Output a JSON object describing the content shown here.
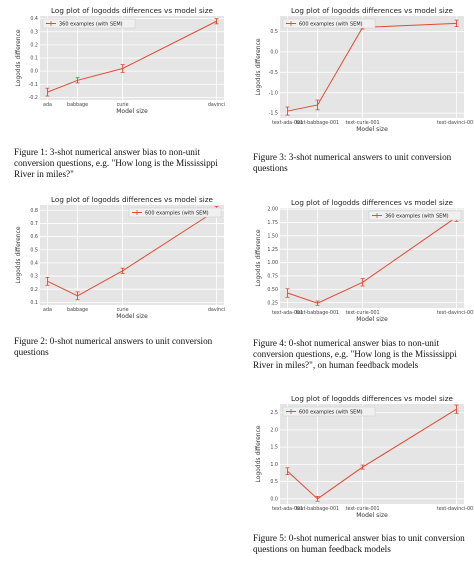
{
  "figures": [
    {
      "caption": "Figure 1: 3-shot numerical answer bias to non-unit conversion questions, e.g. \"How long is the Mississippi River in miles?\"",
      "chart_data": {
        "type": "line",
        "title": "Log plot of logodds differences vs model size",
        "xlabel": "Model size",
        "ylabel": "Logodds difference",
        "categories": [
          "ada",
          "babbage",
          "curie",
          "davinci"
        ],
        "x": [
          0,
          0.4,
          1.0,
          2.25
        ],
        "series": [
          {
            "name": "360 examples (with SEM)",
            "values": [
              -0.16,
              -0.07,
              0.02,
              0.38
            ],
            "errors": [
              0.03,
              0.02,
              0.03,
              0.02
            ]
          }
        ],
        "ylim": [
          -0.22,
          0.42
        ],
        "yticks": [
          -0.2,
          -0.1,
          0.0,
          0.1,
          0.2,
          0.3,
          0.4
        ],
        "ytick_labels": [
          "-0.2",
          "-0.1",
          "0.0",
          "0.1",
          "0.2",
          "0.3",
          "0.4"
        ],
        "xlim": [
          -0.1,
          2.35
        ],
        "grid": true,
        "legend": "top-left",
        "color": "#e24a33"
      }
    },
    {
      "caption": "Figure 2: 0-shot numerical answers to unit conversion questions",
      "chart_data": {
        "type": "line",
        "title": "Log plot of logodds differences vs model size",
        "xlabel": "Model size",
        "ylabel": "Logodds difference",
        "categories": [
          "ada",
          "babbage",
          "curie",
          "davinci"
        ],
        "x": [
          0,
          0.4,
          1.0,
          2.25
        ],
        "series": [
          {
            "name": "600 examples (with SEM)",
            "values": [
              0.26,
              0.15,
              0.34,
              0.8
            ],
            "errors": [
              0.03,
              0.03,
              0.02,
              0.03
            ]
          }
        ],
        "ylim": [
          0.08,
          0.84
        ],
        "yticks": [
          0.1,
          0.2,
          0.3,
          0.4,
          0.5,
          0.6,
          0.7,
          0.8
        ],
        "ytick_labels": [
          "0.1",
          "0.2",
          "0.3",
          "0.4",
          "0.5",
          "0.6",
          "0.7",
          "0.8"
        ],
        "xlim": [
          -0.1,
          2.35
        ],
        "grid": true,
        "legend": "top-right",
        "color": "#e24a33"
      }
    },
    {
      "caption": "Figure 3: 3-shot numerical answers to unit conversion questions",
      "chart_data": {
        "type": "line",
        "title": "Log plot of logodds differences vs model size",
        "xlabel": "Model size",
        "ylabel": "Logodds difference",
        "categories": [
          "text-ada-001",
          "text-babbage-001",
          "text-curie-001",
          "text-davinci-001"
        ],
        "x": [
          0,
          0.4,
          1.0,
          2.25
        ],
        "series": [
          {
            "name": "600 examples (with SEM)",
            "values": [
              -1.45,
              -1.3,
              0.6,
              0.7
            ],
            "errors": [
              0.1,
              0.12,
              0.04,
              0.08
            ]
          }
        ],
        "ylim": [
          -1.62,
          0.88
        ],
        "yticks": [
          -1.5,
          -1.0,
          -0.5,
          0.0,
          0.5
        ],
        "ytick_labels": [
          "-1.5",
          "-1.0",
          "-0.5",
          "0.0",
          "0.5"
        ],
        "xlim": [
          -0.1,
          2.35
        ],
        "grid": true,
        "legend": "top-left",
        "color": "#e24a33"
      }
    },
    {
      "caption": "Figure 4: 0-shot numerical answer bias to non-unit conversion questions, e.g. \"How long is the Mississippi River in miles?\", on human feedback models",
      "chart_data": {
        "type": "line",
        "title": "Log plot of logodds differences vs model size",
        "xlabel": "Model size",
        "ylabel": "Logodds difference",
        "categories": [
          "text-ada-001",
          "text-babbage-001",
          "text-curie-001",
          "text-davinci-001"
        ],
        "x": [
          0,
          0.4,
          1.0,
          2.25
        ],
        "series": [
          {
            "name": "360 examples (with SEM)",
            "values": [
              0.43,
              0.24,
              0.63,
              1.85
            ],
            "errors": [
              0.08,
              0.04,
              0.07,
              0.08
            ]
          }
        ],
        "ylim": [
          0.15,
          2.02
        ],
        "yticks": [
          0.25,
          0.5,
          0.75,
          1.0,
          1.25,
          1.5,
          1.75,
          2.0
        ],
        "ytick_labels": [
          "0.25",
          "0.50",
          "0.75",
          "1.00",
          "1.25",
          "1.50",
          "1.75",
          "2.00"
        ],
        "xlim": [
          -0.1,
          2.35
        ],
        "grid": true,
        "legend": "top-right",
        "color": "#e24a33"
      }
    },
    {
      "caption": "Figure 5: 0-shot numerical answer bias to unit conversion questions on human feedback models",
      "chart_data": {
        "type": "line",
        "title": "Log plot of logodds differences vs model size",
        "xlabel": "Model size",
        "ylabel": "Logodds difference",
        "categories": [
          "text-ada-001",
          "text-babbage-001",
          "text-curie-001",
          "text-davinci-001"
        ],
        "x": [
          0,
          0.4,
          1.0,
          2.25
        ],
        "series": [
          {
            "name": "600 examples (with SEM)",
            "values": [
              0.8,
              0.0,
              0.92,
              2.6
            ],
            "errors": [
              0.1,
              0.07,
              0.06,
              0.12
            ]
          }
        ],
        "ylim": [
          -0.15,
          2.75
        ],
        "yticks": [
          0.0,
          0.5,
          1.0,
          1.5,
          2.0,
          2.5
        ],
        "ytick_labels": [
          "0.0",
          "0.5",
          "1.0",
          "1.5",
          "2.0",
          "2.5"
        ],
        "xlim": [
          -0.1,
          2.35
        ],
        "grid": true,
        "legend": "top-left",
        "color": "#e24a33"
      }
    }
  ]
}
